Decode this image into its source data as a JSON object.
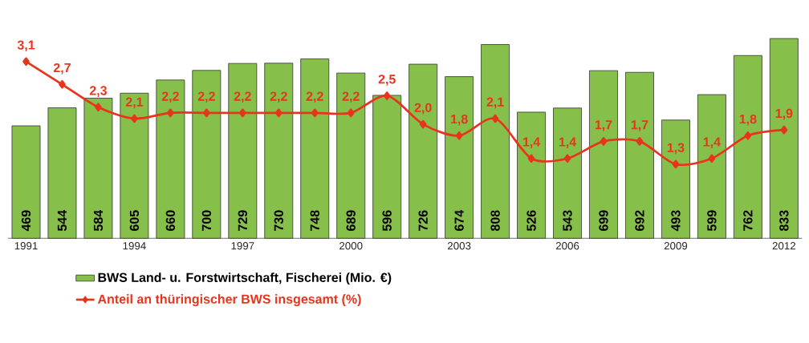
{
  "chart_data": {
    "type": "bar",
    "categories": [
      "1991",
      null,
      null,
      "1994",
      null,
      null,
      "1997",
      null,
      null,
      "2000",
      null,
      null,
      "2003",
      null,
      null,
      "2006",
      null,
      null,
      "2009",
      null,
      null,
      "2012"
    ],
    "series": [
      {
        "name": "BWS Land- u. Forstwirtschaft, Fischerei (Mio. €)",
        "axis": "y",
        "color": "#86c04a",
        "values": [
          469,
          544,
          584,
          605,
          660,
          700,
          729,
          730,
          748,
          689,
          596,
          726,
          674,
          808,
          526,
          543,
          699,
          692,
          493,
          599,
          762,
          833
        ],
        "value_labels": [
          "469",
          "544",
          "584",
          "605",
          "660",
          "700",
          "729",
          "730",
          "748",
          "689",
          "596",
          "726",
          "674",
          "808",
          "526",
          "543",
          "699",
          "692",
          "493",
          "599",
          "762",
          "833"
        ]
      },
      {
        "name": "Anteil an thüringischer BWS insgesamt (%)",
        "type": "line",
        "axis": "y2",
        "color": "#e8341c",
        "marker": "diamond",
        "values": [
          3.1,
          2.7,
          2.3,
          2.1,
          2.2,
          2.2,
          2.2,
          2.2,
          2.2,
          2.2,
          2.5,
          2.0,
          1.8,
          2.1,
          1.4,
          1.4,
          1.7,
          1.7,
          1.3,
          1.4,
          1.8,
          1.9
        ],
        "value_labels": [
          "3,1",
          "2,7",
          "2,3",
          "2,1",
          "2,2",
          "2,2",
          "2,2",
          "2,2",
          "2,2",
          "2,2",
          "2,5",
          "2,0",
          "1,8",
          "2,1",
          "1,4",
          "1,4",
          "1,7",
          "1,7",
          "1,3",
          "1,4",
          "1,8",
          "1,9"
        ]
      }
    ],
    "legend": "bottom",
    "tick_labels": "x"
  }
}
